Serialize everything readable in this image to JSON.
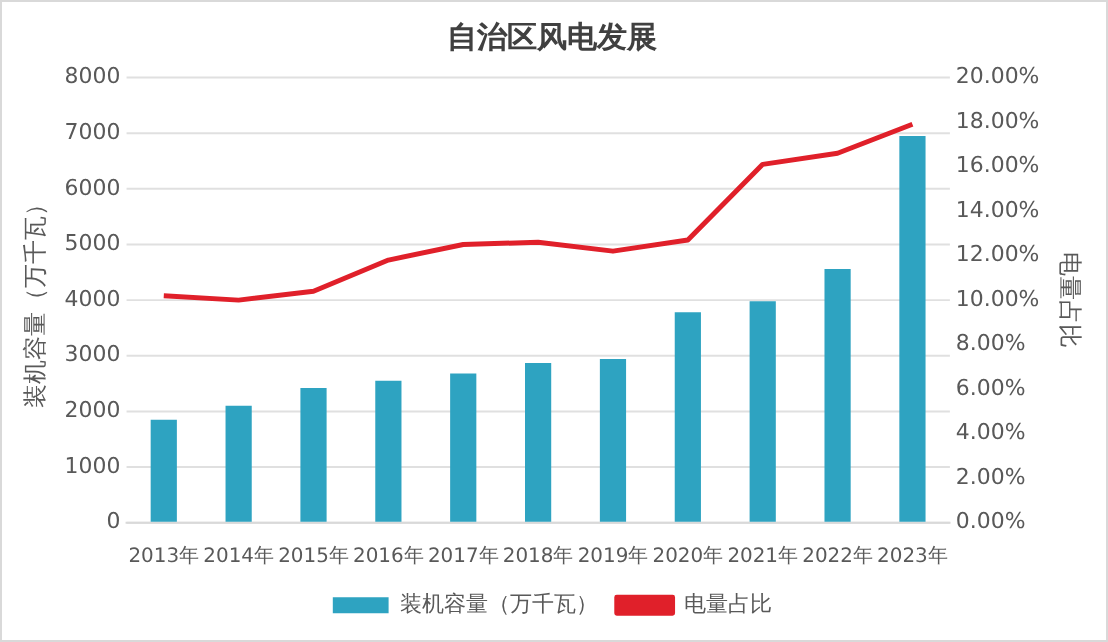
{
  "chart_data": {
    "type": "bar",
    "title": "自治区风电发展",
    "categories": [
      "2013年",
      "2014年",
      "2015年",
      "2016年",
      "2017年",
      "2018年",
      "2019年",
      "2020年",
      "2021年",
      "2022年",
      "2023年"
    ],
    "series": [
      {
        "name": "装机容量（万千瓦）",
        "color": "#2ea3c1",
        "values": [
          1850,
          2100,
          2420,
          2550,
          2680,
          2870,
          2940,
          3780,
          3980,
          4560,
          6950
        ]
      },
      {
        "name": "电量占比",
        "type": "line",
        "axis": "y2",
        "color": "#e0202a",
        "values": [
          10.2,
          10.0,
          10.4,
          11.8,
          12.5,
          12.6,
          12.2,
          12.7,
          16.1,
          16.6,
          17.9
        ]
      }
    ],
    "ylabel": "装机容量（万千瓦）",
    "y2label": "电量占比",
    "ylim": [
      0,
      8000
    ],
    "yticks": [
      0,
      1000,
      2000,
      3000,
      4000,
      5000,
      6000,
      7000,
      8000
    ],
    "y2lim": [
      0,
      20
    ],
    "y2ticks": [
      {
        "value": 0,
        "label": "0.00%"
      },
      {
        "value": 2,
        "label": "2.00%"
      },
      {
        "value": 4,
        "label": "4.00%"
      },
      {
        "value": 6,
        "label": "6.00%"
      },
      {
        "value": 8,
        "label": "8.00%"
      },
      {
        "value": 10,
        "label": "10.00%"
      },
      {
        "value": 12,
        "label": "12.00%"
      },
      {
        "value": 14,
        "label": "14.00%"
      },
      {
        "value": 16,
        "label": "16.00%"
      },
      {
        "value": 18,
        "label": "18.00%"
      },
      {
        "value": 20,
        "label": "20.00%"
      }
    ],
    "grid": "y",
    "legend": "bottom",
    "marker": "none",
    "line_style": "solid"
  }
}
